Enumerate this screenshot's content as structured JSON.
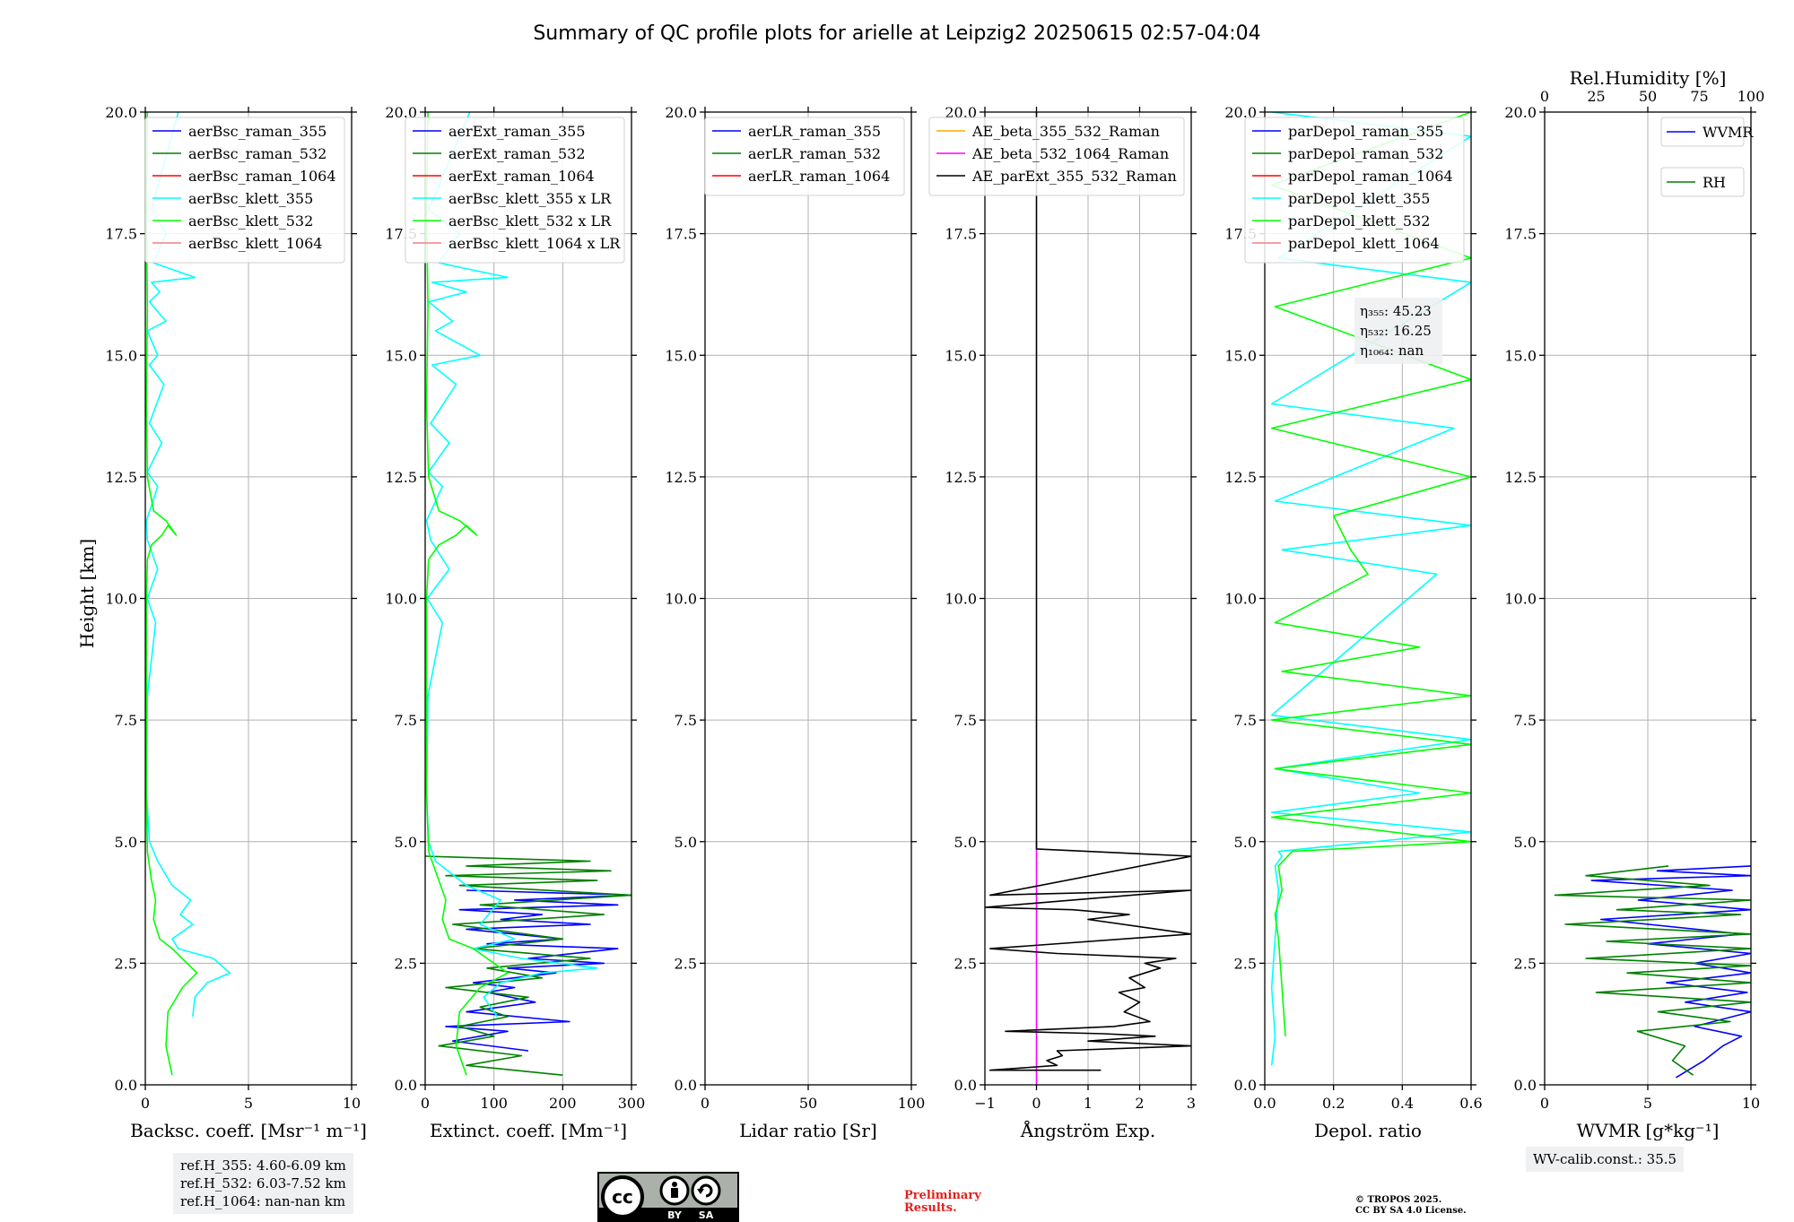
{
  "figure": {
    "title": "Summary of QC profile plots for arielle at Leipzig2 20250615 02:57-04:04",
    "ylabel": "Height [km]",
    "ref_heights": [
      "ref.H_355: 4.60-6.09 km",
      "ref.H_532: 6.03-7.52 km",
      "ref.H_1064: nan-nan km"
    ],
    "wv_calib": "WV-calib.const.: 35.5",
    "preliminary": [
      "Preliminary",
      "Results."
    ],
    "copyright": [
      "© TROPOS 2025.",
      "CC BY SA 4.0 License."
    ],
    "cc_badge": {
      "by": "BY",
      "sa": "SA"
    },
    "colors": {
      "blue": "#0000ff",
      "green": "#008000",
      "red": "#ff0000",
      "cyan": "#00ffff",
      "lime": "#00ff00",
      "salmon": "#f08080",
      "orange": "#ffa500",
      "magenta": "#ff00ff",
      "black": "#000000",
      "grid": "#b0b0b0"
    }
  },
  "chart_data": [
    {
      "type": "line",
      "xlabel": "Backsc. coeff. [Msr⁻¹ m⁻¹]",
      "xlim": [
        0,
        10
      ],
      "xticks": [
        "0",
        "5",
        "10"
      ],
      "ylim": [
        0,
        20
      ],
      "yticks": [
        "0.0",
        "2.5",
        "5.0",
        "7.5",
        "10.0",
        "12.5",
        "15.0",
        "17.5",
        "20.0"
      ],
      "grid": true,
      "legend_position": "upper right",
      "series": [
        {
          "name": "aerBsc_raman_355",
          "color": "#0000ff",
          "x": [],
          "y": []
        },
        {
          "name": "aerBsc_raman_532",
          "color": "#008000",
          "x": [],
          "y": []
        },
        {
          "name": "aerBsc_raman_1064",
          "color": "#ff0000",
          "x": [],
          "y": []
        },
        {
          "name": "aerBsc_klett_355",
          "color": "#00ffff",
          "x": [
            2.3,
            2.4,
            3.0,
            4.1,
            3.3,
            1.6,
            1.3,
            2.3,
            1.7,
            2.2,
            1.3,
            0.6,
            0.2,
            0.05,
            0.1,
            0.5,
            0.1,
            0.6,
            0.1,
            0.05,
            0.6,
            0.1,
            0.8,
            0.2,
            0.9,
            0.2,
            0.6,
            0.1,
            1.0,
            0.2,
            0.7,
            0.3,
            2.4,
            0.4,
            1.0,
            0.3,
            1.6
          ],
          "y": [
            1.4,
            1.8,
            2.1,
            2.3,
            2.6,
            2.8,
            3.0,
            3.3,
            3.5,
            3.8,
            4.1,
            4.6,
            5.0,
            6.0,
            8.0,
            9.5,
            10.0,
            10.6,
            11.2,
            11.6,
            12.3,
            12.6,
            13.2,
            13.6,
            14.4,
            14.8,
            15.0,
            15.5,
            15.7,
            16.1,
            16.3,
            16.5,
            16.6,
            16.9,
            17.5,
            18.0,
            20.0
          ]
        },
        {
          "name": "aerBsc_klett_532",
          "color": "#00ff00",
          "x": [
            1.3,
            1.0,
            1.1,
            1.8,
            2.5,
            1.3,
            0.7,
            0.4,
            0.5,
            0.3,
            0.1,
            0.05,
            0.05,
            0.05,
            0.1,
            0.3,
            0.8,
            1.1,
            1.5,
            1.0,
            0.4,
            0.1,
            0.05,
            0.1,
            0.05,
            0.1
          ],
          "y": [
            0.2,
            0.8,
            1.5,
            2.0,
            2.3,
            2.8,
            3.0,
            3.4,
            3.8,
            4.2,
            4.8,
            6.0,
            8.0,
            10.0,
            10.8,
            11.1,
            11.3,
            11.5,
            11.3,
            11.6,
            11.8,
            12.5,
            14.0,
            16.0,
            18.0,
            20.0
          ]
        },
        {
          "name": "aerBsc_klett_1064",
          "color": "#f08080",
          "x": [],
          "y": []
        }
      ]
    },
    {
      "type": "line",
      "xlabel": "Extinct. coeff. [Mm⁻¹]",
      "xlim": [
        0,
        300
      ],
      "xticks": [
        "0",
        "100",
        "200",
        "300"
      ],
      "ylim": [
        0,
        20
      ],
      "yticks": [
        "0.0",
        "2.5",
        "5.0",
        "7.5",
        "10.0",
        "12.5",
        "15.0",
        "17.5",
        "20.0"
      ],
      "grid": true,
      "legend_position": "upper right",
      "series": [
        {
          "name": "aerExt_raman_355",
          "color": "#0000ff",
          "x": [
            150,
            40,
            120,
            30,
            210,
            60,
            160,
            90,
            130,
            70,
            190,
            120,
            260,
            150,
            280,
            90,
            200,
            60,
            240,
            110,
            170,
            50,
            280,
            130,
            300,
            60
          ],
          "y": [
            0.7,
            0.9,
            1.1,
            1.2,
            1.3,
            1.5,
            1.7,
            1.9,
            2.0,
            2.1,
            2.3,
            2.4,
            2.5,
            2.6,
            2.8,
            2.9,
            3.0,
            3.2,
            3.3,
            3.4,
            3.5,
            3.6,
            3.7,
            3.8,
            3.9,
            4.0
          ]
        },
        {
          "name": "aerExt_raman_532",
          "color": "#008000",
          "x": [
            200,
            60,
            140,
            20,
            100,
            50,
            120,
            80,
            150,
            30,
            170,
            90,
            240,
            70,
            200,
            40,
            260,
            80,
            300,
            50,
            250,
            30,
            270,
            60,
            240,
            0
          ],
          "y": [
            0.2,
            0.4,
            0.6,
            0.8,
            1.0,
            1.2,
            1.4,
            1.6,
            1.8,
            2.0,
            2.2,
            2.4,
            2.6,
            2.8,
            3.0,
            3.3,
            3.5,
            3.7,
            3.9,
            4.1,
            4.2,
            4.3,
            4.4,
            4.5,
            4.6,
            4.7
          ]
        },
        {
          "name": "aerExt_raman_1064",
          "color": "#ff0000",
          "x": [],
          "y": []
        },
        {
          "name": "aerBsc_klett_355 x LR",
          "color": "#00ffff",
          "x": [
            105,
            85,
            110,
            170,
            250,
            140,
            70,
            130,
            80,
            110,
            60,
            15,
            5,
            2,
            4,
            25,
            3,
            35,
            8,
            2,
            25,
            5,
            35,
            8,
            45,
            10,
            80,
            15,
            40,
            5,
            60,
            10,
            120,
            20,
            50,
            5,
            65
          ],
          "y": [
            1.4,
            1.8,
            2.1,
            2.3,
            2.4,
            2.6,
            2.8,
            3.0,
            3.3,
            3.8,
            4.1,
            4.6,
            5.0,
            6.0,
            8.0,
            9.5,
            10.0,
            10.6,
            11.2,
            11.6,
            12.3,
            12.6,
            13.2,
            13.6,
            14.4,
            14.8,
            15.0,
            15.5,
            15.7,
            16.1,
            16.3,
            16.5,
            16.6,
            16.9,
            17.5,
            18.0,
            20.0
          ]
        },
        {
          "name": "aerBsc_klett_532 x LR",
          "color": "#00ff00",
          "x": [
            60,
            45,
            50,
            80,
            120,
            70,
            35,
            25,
            30,
            20,
            5,
            2,
            2,
            2,
            5,
            20,
            45,
            60,
            75,
            50,
            20,
            5,
            2,
            4,
            2,
            4
          ],
          "y": [
            0.2,
            0.8,
            1.5,
            2.0,
            2.3,
            2.8,
            3.0,
            3.4,
            3.8,
            4.2,
            4.8,
            6.0,
            8.0,
            10.0,
            10.8,
            11.1,
            11.3,
            11.5,
            11.3,
            11.6,
            11.8,
            12.5,
            14.0,
            16.0,
            18.0,
            20.0
          ]
        },
        {
          "name": "aerBsc_klett_1064 x LR",
          "color": "#f08080",
          "x": [],
          "y": []
        }
      ]
    },
    {
      "type": "line",
      "xlabel": "Lidar ratio [Sr]",
      "xlim": [
        0,
        120
      ],
      "xticks": [
        "0",
        "50",
        "100"
      ],
      "ylim": [
        0,
        20
      ],
      "yticks": [
        "0.0",
        "2.5",
        "5.0",
        "7.5",
        "10.0",
        "12.5",
        "15.0",
        "17.5",
        "20.0"
      ],
      "grid": true,
      "legend_position": "upper right",
      "series": [
        {
          "name": "aerLR_raman_355",
          "color": "#0000ff",
          "x": [],
          "y": []
        },
        {
          "name": "aerLR_raman_532",
          "color": "#008000",
          "x": [],
          "y": []
        },
        {
          "name": "aerLR_raman_1064",
          "color": "#ff0000",
          "x": [],
          "y": []
        }
      ]
    },
    {
      "type": "line",
      "xlabel": "Ångström Exp.",
      "xlim": [
        -1,
        3
      ],
      "xticks": [
        "−1",
        "0",
        "1",
        "2",
        "3"
      ],
      "ylim": [
        0,
        20
      ],
      "yticks": [
        "0.0",
        "2.5",
        "5.0",
        "7.5",
        "10.0",
        "12.5",
        "15.0",
        "17.5",
        "20.0"
      ],
      "grid": true,
      "legend_position": "upper right",
      "series": [
        {
          "name": "AE_beta_355_532_Raman",
          "color": "#ffa500",
          "x": [],
          "y": []
        },
        {
          "name": "AE_beta_532_1064_Raman",
          "color": "#ff00ff",
          "x": [
            0,
            0
          ],
          "y": [
            0.0,
            5.0
          ]
        },
        {
          "name": "AE_parExt_355_532_Raman",
          "color": "#000000",
          "x": [
            1.25,
            -0.9,
            0.4,
            0.2,
            0.5,
            0.4,
            3.0,
            1.0,
            2.3,
            1.3,
            -0.6,
            1.5,
            2.2,
            1.7,
            2.0,
            1.6,
            2.1,
            1.8,
            2.4,
            2.1,
            2.7,
            0.4,
            -0.9,
            3.0,
            1.0,
            1.8,
            0.7,
            -1.0,
            3.0,
            -0.9,
            3.0,
            0.0,
            0.0
          ],
          "y": [
            0.3,
            0.3,
            0.4,
            0.5,
            0.6,
            0.7,
            0.8,
            0.9,
            1.0,
            1.05,
            1.1,
            1.2,
            1.3,
            1.5,
            1.7,
            1.9,
            2.0,
            2.2,
            2.4,
            2.5,
            2.6,
            2.7,
            2.8,
            3.1,
            3.4,
            3.5,
            3.6,
            3.65,
            4.0,
            3.9,
            4.7,
            4.85,
            20.0
          ]
        }
      ]
    },
    {
      "type": "line",
      "xlabel": "Depol. ratio",
      "xlim": [
        0,
        0.6
      ],
      "xticks": [
        "0.0",
        "0.2",
        "0.4",
        "0.6"
      ],
      "ylim": [
        0,
        20
      ],
      "yticks": [
        "0.0",
        "2.5",
        "5.0",
        "7.5",
        "10.0",
        "12.5",
        "15.0",
        "17.5",
        "20.0"
      ],
      "grid": true,
      "legend_position": "upper right",
      "annotation": [
        "η₃₅₅: 45.23",
        "η₅₃₂: 16.25",
        "η₁₀₆₄: nan"
      ],
      "series": [
        {
          "name": "parDepol_raman_355",
          "color": "#0000ff",
          "x": [],
          "y": []
        },
        {
          "name": "parDepol_raman_532",
          "color": "#008000",
          "x": [],
          "y": []
        },
        {
          "name": "parDepol_raman_1064",
          "color": "#ff0000",
          "x": [],
          "y": []
        },
        {
          "name": "parDepol_klett_355",
          "color": "#00ffff",
          "x": [
            0.02,
            0.03,
            0.02,
            0.03,
            0.04,
            0.03,
            0.05,
            0.04,
            0.6,
            0.02,
            0.45,
            0.03,
            0.6,
            0.02,
            0.5,
            0.05,
            0.6,
            0.03,
            0.55,
            0.02,
            0.6,
            0.04,
            0.6,
            0.02
          ],
          "y": [
            0.4,
            1.0,
            2.0,
            3.0,
            4.0,
            4.5,
            4.7,
            4.8,
            5.2,
            5.6,
            6.0,
            6.5,
            7.1,
            7.6,
            10.5,
            11.0,
            11.5,
            12.0,
            13.5,
            14.0,
            16.5,
            17.0,
            19.5,
            20.0
          ]
        },
        {
          "name": "parDepol_klett_532",
          "color": "#00ff00",
          "x": [
            0.06,
            0.05,
            0.04,
            0.03,
            0.05,
            0.04,
            0.08,
            0.6,
            0.02,
            0.6,
            0.03,
            0.6,
            0.02,
            0.6,
            0.05,
            0.45,
            0.03,
            0.3,
            0.25,
            0.2,
            0.6,
            0.02,
            0.6,
            0.03,
            0.6,
            0.02,
            0.6
          ],
          "y": [
            1.0,
            2.0,
            3.0,
            3.5,
            4.0,
            4.5,
            4.8,
            5.0,
            5.5,
            6.0,
            6.5,
            7.0,
            7.5,
            8.0,
            8.5,
            9.0,
            9.5,
            10.5,
            11.0,
            11.7,
            12.5,
            13.5,
            14.5,
            16.0,
            17.0,
            18.5,
            20.0
          ]
        },
        {
          "name": "parDepol_klett_1064",
          "color": "#f08080",
          "x": [],
          "y": []
        }
      ]
    },
    {
      "type": "line",
      "xlabel": "WVMR [g*kg⁻¹]",
      "xlim": [
        0,
        11
      ],
      "xticks": [
        "0",
        "5",
        "10"
      ],
      "x2label": "Rel.Humidity [%]",
      "x2lim": [
        0,
        100
      ],
      "x2ticks": [
        "0",
        "25",
        "50",
        "75",
        "100"
      ],
      "ylim": [
        0,
        20
      ],
      "yticks": [
        "0.0",
        "2.5",
        "5.0",
        "7.5",
        "10.0",
        "12.5",
        "15.0",
        "17.5",
        "20.0"
      ],
      "grid": true,
      "legend_position": "upper right",
      "series": [
        {
          "name": "WVMR",
          "color": "#0000ff",
          "x": [
            7.0,
            8.5,
            9.5,
            10.5,
            8.0,
            11.0,
            7.5,
            10.8,
            6.5,
            11.0,
            8.0,
            11.0,
            5.5,
            10.5,
            3.0,
            11.0,
            5.0,
            10.0,
            2.5,
            11.0,
            6.0,
            11.0
          ],
          "y": [
            0.15,
            0.5,
            0.8,
            1.0,
            1.2,
            1.5,
            1.7,
            1.9,
            2.1,
            2.3,
            2.5,
            2.7,
            2.9,
            3.1,
            3.4,
            3.6,
            3.8,
            4.0,
            4.2,
            4.3,
            4.4,
            4.5
          ]
        },
        {
          "name": "RH",
          "color": "#008000",
          "x": [
            72,
            62,
            68,
            45,
            90,
            55,
            100,
            25,
            100,
            40,
            100,
            20,
            100,
            30,
            100,
            10,
            95,
            35,
            100,
            5,
            80,
            20,
            60
          ],
          "y": [
            0.2,
            0.5,
            0.8,
            1.1,
            1.3,
            1.5,
            1.7,
            1.9,
            2.1,
            2.3,
            2.45,
            2.6,
            2.8,
            2.95,
            3.1,
            3.3,
            3.5,
            3.6,
            3.8,
            3.9,
            4.1,
            4.3,
            4.5
          ]
        }
      ]
    }
  ]
}
